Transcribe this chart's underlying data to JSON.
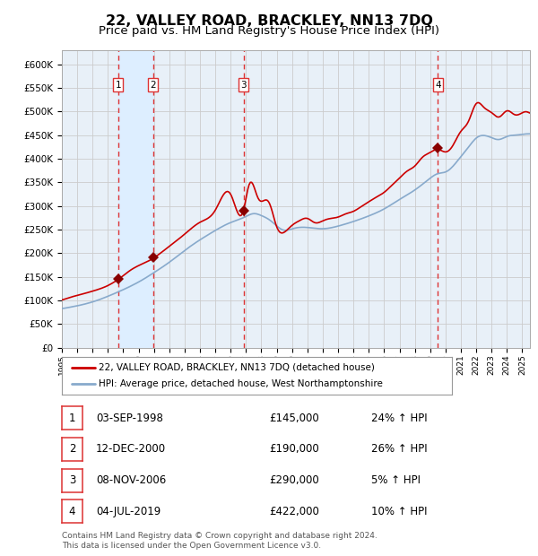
{
  "title": "22, VALLEY ROAD, BRACKLEY, NN13 7DQ",
  "subtitle": "Price paid vs. HM Land Registry's House Price Index (HPI)",
  "title_fontsize": 11.5,
  "subtitle_fontsize": 9.5,
  "ylabel_ticks": [
    "£0",
    "£50K",
    "£100K",
    "£150K",
    "£200K",
    "£250K",
    "£300K",
    "£350K",
    "£400K",
    "£450K",
    "£500K",
    "£550K",
    "£600K"
  ],
  "ytick_vals": [
    0,
    50000,
    100000,
    150000,
    200000,
    250000,
    300000,
    350000,
    400000,
    450000,
    500000,
    550000,
    600000
  ],
  "ylim": [
    0,
    630000
  ],
  "xlim_start": 1995.0,
  "xlim_end": 2025.5,
  "xticks": [
    1995,
    1996,
    1997,
    1998,
    1999,
    2000,
    2001,
    2002,
    2003,
    2004,
    2005,
    2006,
    2007,
    2008,
    2009,
    2010,
    2011,
    2012,
    2013,
    2014,
    2015,
    2016,
    2017,
    2018,
    2019,
    2020,
    2021,
    2022,
    2023,
    2024,
    2025
  ],
  "sale_dates_num": [
    1998.67,
    2000.95,
    2006.85,
    2019.5
  ],
  "sale_prices": [
    145000,
    190000,
    290000,
    422000
  ],
  "sale_labels": [
    "1",
    "2",
    "3",
    "4"
  ],
  "vline_color": "#dd3333",
  "shade_color": "#ddeeff",
  "red_line_color": "#cc0000",
  "blue_line_color": "#88aacc",
  "marker_color": "#880000",
  "legend_line1": "22, VALLEY ROAD, BRACKLEY, NN13 7DQ (detached house)",
  "legend_line2": "HPI: Average price, detached house, West Northamptonshire",
  "table_entries": [
    [
      "1",
      "03-SEP-1998",
      "£145,000",
      "24% ↑ HPI"
    ],
    [
      "2",
      "12-DEC-2000",
      "£190,000",
      "26% ↑ HPI"
    ],
    [
      "3",
      "08-NOV-2006",
      "£290,000",
      "5% ↑ HPI"
    ],
    [
      "4",
      "04-JUL-2019",
      "£422,000",
      "10% ↑ HPI"
    ]
  ],
  "footnote": "Contains HM Land Registry data © Crown copyright and database right 2024.\nThis data is licensed under the Open Government Licence v3.0.",
  "bg_color": "#ffffff",
  "grid_color": "#cccccc",
  "plot_bg_color": "#e8f0f8"
}
